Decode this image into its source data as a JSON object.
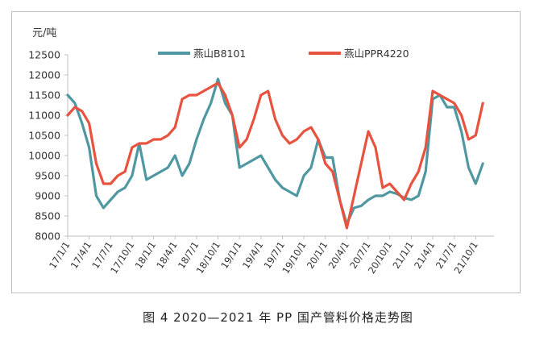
{
  "caption": "图 4  2020—2021 年 PP 国产管料价格走势图",
  "chart_data": {
    "type": "line",
    "ylabel": "元/吨",
    "ylim": [
      8000,
      12500
    ],
    "yticks": [
      8000,
      8500,
      9000,
      9500,
      10000,
      10500,
      11000,
      11500,
      12000,
      12500
    ],
    "xticks": [
      "17/1/1",
      "17/4/1",
      "17/7/1",
      "17/10/1",
      "18/1/1",
      "18/4/1",
      "18/7/1",
      "18/10/1",
      "19/1/1",
      "19/4/1",
      "19/7/1",
      "19/10/1",
      "20/1/1",
      "20/4/1",
      "20/7/1",
      "20/10/1",
      "21/1/1",
      "21/4/1",
      "21/7/1",
      "21/10/1"
    ],
    "grid": false,
    "legend_position": "top",
    "series": [
      {
        "name": "燕山B8101",
        "color": "#4f98a1",
        "x": [
          "17/1/1",
          "17/2/1",
          "17/3/1",
          "17/4/1",
          "17/5/1",
          "17/6/1",
          "17/7/1",
          "17/8/1",
          "17/9/1",
          "17/10/1",
          "17/11/1",
          "17/12/1",
          "18/1/1",
          "18/2/1",
          "18/3/1",
          "18/4/1",
          "18/5/1",
          "18/6/1",
          "18/7/1",
          "18/8/1",
          "18/9/1",
          "18/10/1",
          "18/11/1",
          "18/12/1",
          "19/1/1",
          "19/2/1",
          "19/3/1",
          "19/4/1",
          "19/5/1",
          "19/6/1",
          "19/7/1",
          "19/8/1",
          "19/9/1",
          "19/10/1",
          "19/11/1",
          "19/12/1",
          "20/1/1",
          "20/2/1",
          "20/3/1",
          "20/4/1",
          "20/5/1",
          "20/6/1",
          "20/7/1",
          "20/8/1",
          "20/9/1",
          "20/10/1",
          "20/11/1",
          "20/12/1",
          "21/1/1",
          "21/2/1",
          "21/3/1",
          "21/4/1",
          "21/5/1",
          "21/6/1",
          "21/7/1",
          "21/8/1",
          "21/9/1",
          "21/10/1",
          "21/11/1"
        ],
        "values": [
          11500,
          11300,
          10800,
          10200,
          9000,
          8700,
          8900,
          9100,
          9200,
          9500,
          10300,
          9400,
          9500,
          9600,
          9700,
          10000,
          9500,
          9800,
          10400,
          10900,
          11300,
          11900,
          11300,
          11000,
          9700,
          9800,
          9900,
          10000,
          9700,
          9400,
          9200,
          9100,
          9000,
          9500,
          9700,
          10400,
          9950,
          9950,
          8900,
          8300,
          8700,
          8750,
          8900,
          9000,
          9000,
          9100,
          9050,
          8950,
          8900,
          9000,
          9600,
          11400,
          11500,
          11200,
          11200,
          10600,
          9700,
          9300,
          9800
        ]
      },
      {
        "name": "燕山PPR4220",
        "color": "#e8533f",
        "x": [
          "17/1/1",
          "17/2/1",
          "17/3/1",
          "17/4/1",
          "17/5/1",
          "17/6/1",
          "17/7/1",
          "17/8/1",
          "17/9/1",
          "17/10/1",
          "17/11/1",
          "17/12/1",
          "18/1/1",
          "18/2/1",
          "18/3/1",
          "18/4/1",
          "18/5/1",
          "18/6/1",
          "18/7/1",
          "18/8/1",
          "18/9/1",
          "18/10/1",
          "18/11/1",
          "18/12/1",
          "19/1/1",
          "19/2/1",
          "19/3/1",
          "19/4/1",
          "19/5/1",
          "19/6/1",
          "19/7/1",
          "19/8/1",
          "19/9/1",
          "19/10/1",
          "19/11/1",
          "19/12/1",
          "20/1/1",
          "20/2/1",
          "20/3/1",
          "20/4/1",
          "20/5/1",
          "20/6/1",
          "20/7/1",
          "20/8/1",
          "20/9/1",
          "20/10/1",
          "20/11/1",
          "20/12/1",
          "21/1/1",
          "21/2/1",
          "21/3/1",
          "21/4/1",
          "21/5/1",
          "21/6/1",
          "21/7/1",
          "21/8/1",
          "21/9/1",
          "21/10/1",
          "21/11/1"
        ],
        "values": [
          11000,
          11200,
          11100,
          10800,
          9800,
          9300,
          9300,
          9500,
          9600,
          10200,
          10300,
          10300,
          10400,
          10400,
          10500,
          10700,
          11400,
          11500,
          11500,
          11600,
          11700,
          11800,
          11500,
          11000,
          10200,
          10400,
          10900,
          11500,
          11600,
          10900,
          10500,
          10300,
          10400,
          10600,
          10700,
          10400,
          9800,
          9600,
          8900,
          8200,
          9000,
          9800,
          10600,
          10200,
          9200,
          9300,
          9100,
          8900,
          9300,
          9600,
          10200,
          11600,
          11500,
          11400,
          11300,
          11000,
          10400,
          10500,
          11300
        ]
      }
    ]
  }
}
